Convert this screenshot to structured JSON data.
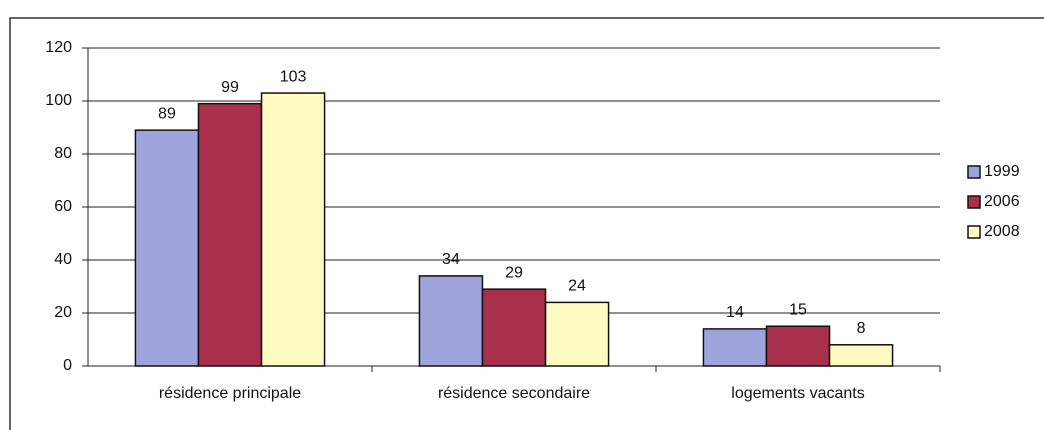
{
  "chart_data": {
    "type": "bar",
    "categories": [
      "résidence principale",
      "résidence secondaire",
      "logements vacants"
    ],
    "series": [
      {
        "name": "1999",
        "color": "#9fa3dc",
        "values": [
          89,
          34,
          14
        ]
      },
      {
        "name": "2006",
        "color": "#a8304c",
        "values": [
          99,
          29,
          15
        ]
      },
      {
        "name": "2008",
        "color": "#fdfbc2",
        "values": [
          103,
          24,
          8
        ]
      }
    ],
    "ylim": [
      0,
      120
    ],
    "yticks": [
      0,
      20,
      40,
      60,
      80,
      100,
      120
    ],
    "grid": true,
    "legend": "right"
  }
}
